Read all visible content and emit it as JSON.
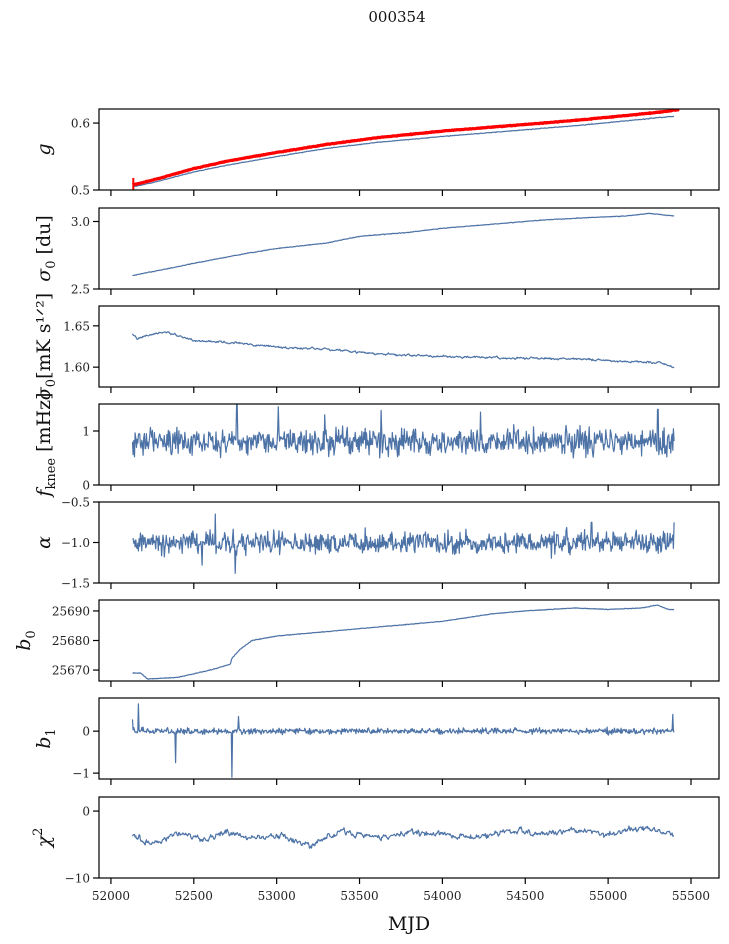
{
  "chart_data": {
    "type": "line",
    "title": "000354",
    "xlabel": "MJD",
    "xlim": [
      51928,
      55669
    ],
    "xticks": [
      52000,
      52500,
      53000,
      53500,
      54000,
      54500,
      55000,
      55500
    ],
    "xtick_labels": [
      "52000",
      "52500",
      "53000",
      "53500",
      "54000",
      "54500",
      "55000",
      "55500"
    ],
    "data_x_range": [
      52130,
      55400
    ],
    "grid": false,
    "line_color": "#4c72a6",
    "overlay_color": "#ff0000",
    "panels": [
      {
        "name": "gain",
        "ylabel": "g",
        "ylim": [
          0.5,
          0.621
        ],
        "yticks": [
          0.5,
          0.6
        ],
        "ytick_labels": [
          "0.5",
          "0.6"
        ],
        "series": [
          {
            "name": "gain",
            "color": "#4c72a6",
            "shape": "rising-smooth",
            "x": [
              52130,
              52160,
              52300,
              52500,
              52700,
              53000,
              53300,
              53600,
              54000,
              54400,
              54800,
              55100,
              55300,
              55400
            ],
            "y": [
              0.505,
              0.506,
              0.514,
              0.527,
              0.537,
              0.55,
              0.562,
              0.571,
              0.58,
              0.588,
              0.596,
              0.603,
              0.608,
              0.61
            ]
          },
          {
            "name": "gain-model",
            "color": "#ff0000",
            "shape": "rising-smooth-thick",
            "x": [
              52130,
              52160,
              52300,
              52500,
              52700,
              53000,
              53300,
              53600,
              54000,
              54400,
              54800,
              55100,
              55300,
              55430
            ],
            "y": [
              0.508,
              0.509,
              0.518,
              0.532,
              0.543,
              0.556,
              0.568,
              0.578,
              0.588,
              0.596,
              0.604,
              0.611,
              0.616,
              0.62
            ]
          }
        ]
      },
      {
        "name": "sigma0-du",
        "ylabel": "σ0 [du]",
        "ylim": [
          2.5,
          3.1
        ],
        "yticks": [
          2.5,
          3.0
        ],
        "ytick_labels": [
          "2.5",
          "3.0"
        ],
        "series": [
          {
            "name": "sigma0_du",
            "color": "#4c72a6",
            "x": [
              52130,
              52300,
              52500,
              52800,
              53000,
              53300,
              53500,
              53800,
              54000,
              54300,
              54600,
              54900,
              55100,
              55250,
              55400
            ],
            "y": [
              2.6,
              2.64,
              2.69,
              2.76,
              2.8,
              2.84,
              2.89,
              2.92,
              2.95,
              2.98,
              3.01,
              3.03,
              3.04,
              3.06,
              3.04
            ]
          }
        ]
      },
      {
        "name": "sigma0-mk",
        "ylabel": "σ0[mK s^1/2]",
        "ylim": [
          1.576,
          1.674
        ],
        "yticks": [
          1.6,
          1.65
        ],
        "ytick_labels": [
          "1.60",
          "1.65"
        ],
        "series": [
          {
            "name": "sigma0_mK",
            "color": "#4c72a6",
            "noise": 0.002,
            "x": [
              52130,
              52160,
              52250,
              52350,
              52500,
              52700,
              53000,
              53300,
              53600,
              53900,
              54200,
              54500,
              54800,
              55100,
              55300,
              55400
            ],
            "y": [
              1.64,
              1.634,
              1.641,
              1.642,
              1.632,
              1.63,
              1.624,
              1.622,
              1.616,
              1.614,
              1.612,
              1.611,
              1.61,
              1.607,
              1.606,
              1.6
            ]
          }
        ]
      },
      {
        "name": "fknee",
        "ylabel": "f_knee [mHz]",
        "ylim": [
          0,
          1.5
        ],
        "yticks": [
          0,
          1
        ],
        "ytick_labels": [
          "0",
          "1"
        ],
        "series": [
          {
            "name": "fknee",
            "color": "#4c72a6",
            "mean": 0.8,
            "noise": 0.18,
            "spikes": [
              [
                52760,
                1.5
              ],
              [
                53010,
                1.45
              ],
              [
                53290,
                1.3
              ],
              [
                53630,
                1.38
              ],
              [
                54230,
                1.35
              ],
              [
                55300,
                1.4
              ]
            ]
          }
        ]
      },
      {
        "name": "alpha",
        "ylabel": "α",
        "ylim": [
          -1.5,
          -0.5
        ],
        "yticks": [
          -1.5,
          -1.0,
          -0.5
        ],
        "ytick_labels": [
          "−1.5",
          "−1.0",
          "−0.5"
        ],
        "series": [
          {
            "name": "alpha",
            "color": "#4c72a6",
            "mean": -1.0,
            "noise": 0.1,
            "spikes": [
              [
                52550,
                -1.28
              ],
              [
                52630,
                -0.65
              ],
              [
                52750,
                -1.38
              ],
              [
                54900,
                -0.75
              ],
              [
                55400,
                -0.75
              ]
            ]
          }
        ]
      },
      {
        "name": "b0",
        "ylabel": "b0",
        "ylim": [
          25666.3,
          25693.7
        ],
        "yticks": [
          25670,
          25680,
          25690
        ],
        "ytick_labels": [
          "25670",
          "25680",
          "25690"
        ],
        "series": [
          {
            "name": "b0",
            "color": "#4c72a6",
            "x": [
              52130,
              52180,
              52220,
              52400,
              52600,
              52720,
              52730,
              52780,
              52850,
              53000,
              53300,
              53700,
              54000,
              54300,
              54500,
              54800,
              55000,
              55200,
              55300,
              55360,
              55400
            ],
            "y": [
              25669,
              25669,
              25667,
              25667.5,
              25670,
              25672,
              25674,
              25677,
              25680,
              25681.5,
              25683,
              25685,
              25686.5,
              25689,
              25690,
              25691,
              25690.5,
              25691,
              25692,
              25690.5,
              25690.5
            ]
          }
        ]
      },
      {
        "name": "b1",
        "ylabel": "b1",
        "ylim": [
          -1.14,
          0.79
        ],
        "yticks": [
          -1,
          0
        ],
        "ytick_labels": [
          "−1",
          "0"
        ],
        "series": [
          {
            "name": "b1",
            "color": "#4c72a6",
            "mean": 0.0,
            "noise": 0.05,
            "spikes": [
              [
                52130,
                0.28
              ],
              [
                52165,
                0.65
              ],
              [
                52390,
                -0.75
              ],
              [
                52730,
                -1.1
              ],
              [
                52770,
                0.35
              ],
              [
                55390,
                0.4
              ]
            ]
          }
        ]
      },
      {
        "name": "chi2",
        "ylabel": "χ^2",
        "ylim": [
          -10,
          2.1
        ],
        "yticks": [
          -10,
          0
        ],
        "ytick_labels": [
          "−10",
          "0"
        ],
        "series": [
          {
            "name": "chi2",
            "color": "#4c72a6",
            "noise": 0.7,
            "x": [
              52130,
              52250,
              52400,
              52550,
              52700,
              52850,
              53000,
              53200,
              53400,
              53600,
              53800,
              54000,
              54200,
              54400,
              54600,
              54800,
              55000,
              55200,
              55400
            ],
            "y": [
              -3.5,
              -5,
              -3,
              -4.5,
              -3.2,
              -4.2,
              -3.5,
              -5,
              -3,
              -4,
              -3.2,
              -3.5,
              -4,
              -3,
              -3.5,
              -2.8,
              -3.5,
              -2.5,
              -3.5
            ]
          }
        ]
      }
    ]
  }
}
